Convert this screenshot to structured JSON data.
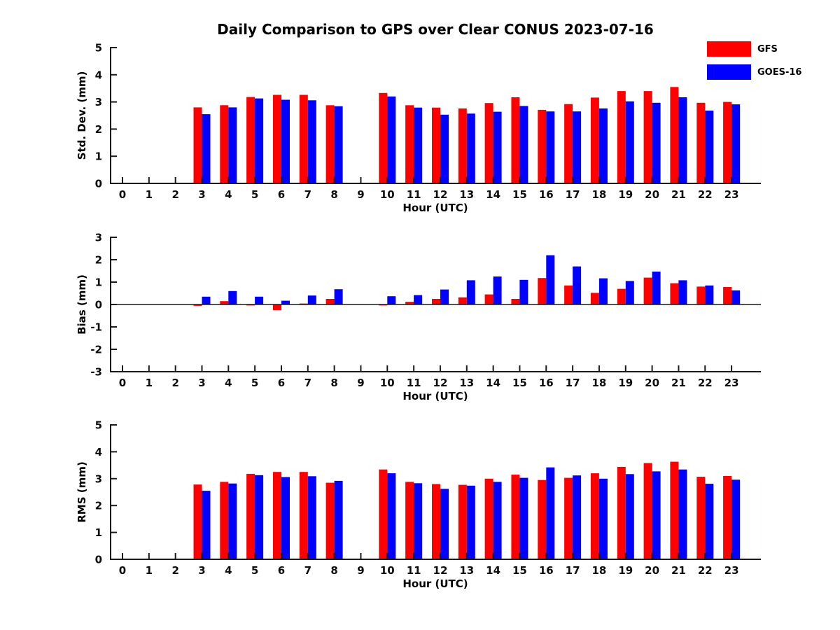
{
  "title": "Daily Comparison to GPS over Clear CONUS 2023-07-16",
  "legend": {
    "position": "top-right",
    "items": [
      {
        "label": "GFS",
        "color": "#ff0000"
      },
      {
        "label": "GOES-16",
        "color": "#0000ff"
      }
    ]
  },
  "chart_data": [
    {
      "type": "bar",
      "panel": "std-dev",
      "ylabel": "Std. Dev. (mm)",
      "xlabel": "Hour (UTC)",
      "ylim": [
        0,
        5
      ],
      "yticks": [
        0,
        1,
        2,
        3,
        4,
        5
      ],
      "grid": false,
      "zero_line": false,
      "categories": [
        "0",
        "1",
        "2",
        "3",
        "4",
        "5",
        "6",
        "7",
        "8",
        "9",
        "10",
        "11",
        "12",
        "13",
        "14",
        "15",
        "16",
        "17",
        "18",
        "19",
        "20",
        "21",
        "22",
        "23"
      ],
      "series": [
        {
          "name": "GFS",
          "color": "#ff0000",
          "values": [
            null,
            null,
            null,
            2.8,
            2.88,
            3.18,
            3.26,
            3.26,
            2.88,
            null,
            3.33,
            2.88,
            2.79,
            2.76,
            2.96,
            3.17,
            2.71,
            2.92,
            3.16,
            3.4,
            3.4,
            3.55,
            2.97,
            3.0
          ]
        },
        {
          "name": "GOES-16",
          "color": "#0000ff",
          "values": [
            null,
            null,
            null,
            2.55,
            2.8,
            3.13,
            3.08,
            3.06,
            2.84,
            null,
            3.2,
            2.79,
            2.53,
            2.57,
            2.64,
            2.85,
            2.65,
            2.65,
            2.76,
            3.02,
            2.97,
            3.17,
            2.68,
            2.91
          ]
        }
      ]
    },
    {
      "type": "bar",
      "panel": "bias",
      "ylabel": "Bias (mm)",
      "xlabel": "Hour (UTC)",
      "ylim": [
        -3,
        3
      ],
      "yticks": [
        -3,
        -2,
        -1,
        0,
        1,
        2,
        3
      ],
      "grid": false,
      "zero_line": true,
      "categories": [
        "0",
        "1",
        "2",
        "3",
        "4",
        "5",
        "6",
        "7",
        "8",
        "9",
        "10",
        "11",
        "12",
        "13",
        "14",
        "15",
        "16",
        "17",
        "18",
        "19",
        "20",
        "21",
        "22",
        "23"
      ],
      "series": [
        {
          "name": "GFS",
          "color": "#ff0000",
          "values": [
            null,
            null,
            null,
            -0.06,
            0.15,
            -0.04,
            -0.25,
            0.02,
            0.25,
            null,
            -0.04,
            0.12,
            0.25,
            0.32,
            0.45,
            0.25,
            1.18,
            0.85,
            0.52,
            0.7,
            1.2,
            0.95,
            0.8,
            0.78
          ]
        },
        {
          "name": "GOES-16",
          "color": "#0000ff",
          "values": [
            null,
            null,
            null,
            0.35,
            0.6,
            0.35,
            0.17,
            0.4,
            0.68,
            null,
            0.37,
            0.42,
            0.67,
            1.08,
            1.25,
            1.1,
            2.2,
            1.7,
            1.17,
            1.05,
            1.47,
            1.08,
            0.85,
            0.63
          ]
        }
      ]
    },
    {
      "type": "bar",
      "panel": "rms",
      "ylabel": "RMS (mm)",
      "xlabel": "Hour (UTC)",
      "ylim": [
        0,
        5
      ],
      "yticks": [
        0,
        1,
        2,
        3,
        4,
        5
      ],
      "grid": false,
      "zero_line": false,
      "categories": [
        "0",
        "1",
        "2",
        "3",
        "4",
        "5",
        "6",
        "7",
        "8",
        "9",
        "10",
        "11",
        "12",
        "13",
        "14",
        "15",
        "16",
        "17",
        "18",
        "19",
        "20",
        "21",
        "22",
        "23"
      ],
      "series": [
        {
          "name": "GFS",
          "color": "#ff0000",
          "values": [
            null,
            null,
            null,
            2.78,
            2.88,
            3.18,
            3.25,
            3.25,
            2.85,
            null,
            3.34,
            2.88,
            2.8,
            2.77,
            3.0,
            3.15,
            2.95,
            3.03,
            3.2,
            3.44,
            3.58,
            3.63,
            3.07,
            3.1
          ]
        },
        {
          "name": "GOES-16",
          "color": "#0000ff",
          "values": [
            null,
            null,
            null,
            2.55,
            2.82,
            3.13,
            3.06,
            3.09,
            2.92,
            null,
            3.2,
            2.83,
            2.62,
            2.74,
            2.88,
            3.03,
            3.42,
            3.12,
            3.0,
            3.17,
            3.27,
            3.34,
            2.81,
            2.96
          ]
        }
      ]
    }
  ]
}
